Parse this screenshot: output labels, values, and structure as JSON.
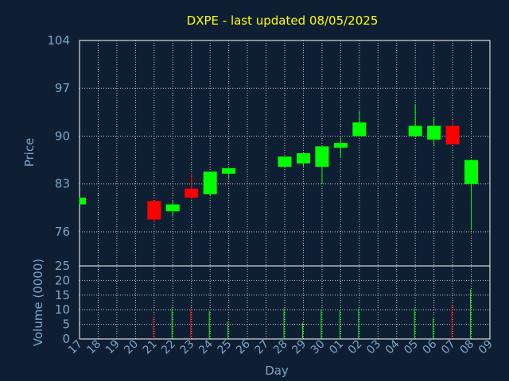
{
  "chart_data": {
    "type": "candlestick",
    "title": "DXPE - last updated 08/05/2025",
    "xlabel": "Day",
    "ylabel": "Price",
    "volume_label": "Volume (0000)",
    "x_tick_labels": [
      "17",
      "18",
      "19",
      "20",
      "21",
      "22",
      "23",
      "24",
      "25",
      "26",
      "27",
      "28",
      "29",
      "30",
      "01",
      "02",
      "03",
      "04",
      "05",
      "06",
      "07",
      "08",
      "09"
    ],
    "price_ylim": [
      71,
      104
    ],
    "price_ticks": [
      104,
      97,
      90,
      83,
      76
    ],
    "volume_ylim": [
      0,
      25
    ],
    "volume_ticks": [
      25,
      20,
      15,
      10,
      5,
      0
    ],
    "grid": true,
    "up_color": "#00ff00",
    "down_color": "#ff0000",
    "background": "#0f1f33",
    "candles": [
      {
        "day": "17",
        "open": 80.0,
        "close": 81.0,
        "high": 81.0,
        "low": 80.0,
        "volume": 0
      },
      {
        "day": "21",
        "open": 80.5,
        "close": 77.8,
        "high": 80.5,
        "low": 77.3,
        "volume": 7.5
      },
      {
        "day": "22",
        "open": 79.0,
        "close": 80.0,
        "high": 80.5,
        "low": 78.3,
        "volume": 10.5
      },
      {
        "day": "23",
        "open": 82.3,
        "close": 81.0,
        "high": 84.5,
        "low": 80.7,
        "volume": 10.5
      },
      {
        "day": "24",
        "open": 81.5,
        "close": 84.8,
        "high": 84.8,
        "low": 81.3,
        "volume": 9.5
      },
      {
        "day": "25",
        "open": 84.5,
        "close": 85.3,
        "high": 85.3,
        "low": 83.8,
        "volume": 6.0
      },
      {
        "day": "28",
        "open": 85.5,
        "close": 87.0,
        "high": 87.0,
        "low": 85.3,
        "volume": 10.5
      },
      {
        "day": "29",
        "open": 86.0,
        "close": 87.5,
        "high": 87.5,
        "low": 85.5,
        "volume": 5.5
      },
      {
        "day": "30",
        "open": 85.5,
        "close": 88.5,
        "high": 88.5,
        "low": 83.0,
        "volume": 10.0
      },
      {
        "day": "01",
        "open": 88.3,
        "close": 89.0,
        "high": 89.8,
        "low": 86.8,
        "volume": 10.0
      },
      {
        "day": "02",
        "open": 90.0,
        "close": 92.0,
        "high": 93.7,
        "low": 90.0,
        "volume": 10.5
      },
      {
        "day": "05",
        "open": 90.0,
        "close": 91.5,
        "high": 94.7,
        "low": 89.8,
        "volume": 10.5
      },
      {
        "day": "06",
        "open": 89.5,
        "close": 91.5,
        "high": 92.7,
        "low": 88.7,
        "volume": 7.0
      },
      {
        "day": "07",
        "open": 91.5,
        "close": 88.8,
        "high": 92.3,
        "low": 88.8,
        "volume": 11.5
      },
      {
        "day": "08",
        "open": 83.0,
        "close": 86.5,
        "high": 86.5,
        "low": 76.2,
        "volume": 17.0
      }
    ]
  }
}
